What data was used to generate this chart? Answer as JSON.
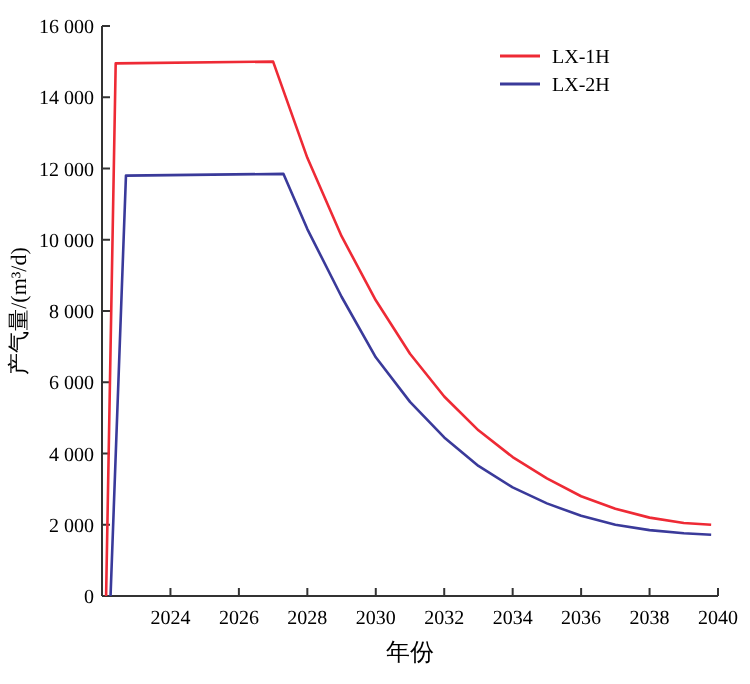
{
  "chart_data": {
    "type": "line",
    "xlabel": "年份",
    "ylabel": "产气量/(m³/d)",
    "xlim": [
      2022,
      2040
    ],
    "xticks": [
      2024,
      2026,
      2028,
      2030,
      2032,
      2034,
      2036,
      2038,
      2040
    ],
    "ylim": [
      0,
      16000
    ],
    "yticks": [
      0,
      {
        "value": 2000,
        "label": "2 000"
      },
      {
        "value": 4000,
        "label": "4 000"
      },
      {
        "value": 6000,
        "label": "6 000"
      },
      {
        "value": 8000,
        "label": "8 000"
      },
      {
        "value": 10000,
        "label": "10 000"
      },
      {
        "value": 12000,
        "label": "12 000"
      },
      {
        "value": 14000,
        "label": "14 000"
      },
      {
        "value": 16000,
        "label": "16 000"
      }
    ],
    "grid": false,
    "legend": "top right",
    "marker": "none",
    "line_style": "solid",
    "series": [
      {
        "name": "LX-1H",
        "color": "#ee2a35",
        "x": [
          2022.12,
          2022.4,
          2027,
          2028,
          2029,
          2030,
          2031,
          2032,
          2033,
          2034,
          2035,
          2036,
          2037,
          2038,
          2039,
          2039.8
        ],
        "values": [
          0,
          14950,
          15000,
          12300,
          10100,
          8300,
          6800,
          5600,
          4650,
          3900,
          3300,
          2800,
          2450,
          2200,
          2050,
          2000
        ]
      },
      {
        "name": "LX-2H",
        "color": "#3a3a9a",
        "x": [
          2022.25,
          2022.7,
          2027.3,
          2028,
          2029,
          2030,
          2031,
          2032,
          2033,
          2034,
          2035,
          2036,
          2037,
          2038,
          2039,
          2039.8
        ],
        "values": [
          0,
          11800,
          11850,
          10300,
          8400,
          6700,
          5450,
          4450,
          3650,
          3050,
          2600,
          2250,
          2000,
          1850,
          1760,
          1720
        ]
      }
    ]
  }
}
